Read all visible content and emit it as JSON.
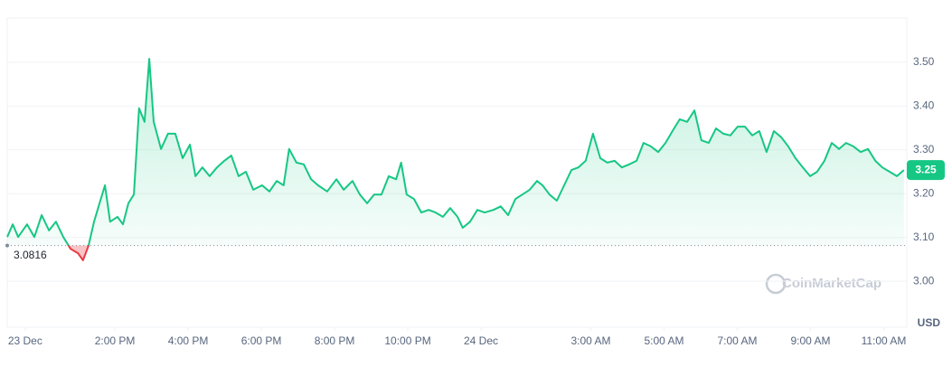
{
  "chart_data": {
    "type": "line",
    "x": [
      11.06,
      11.21,
      11.36,
      11.6,
      11.8,
      12.0,
      12.2,
      12.39,
      12.59,
      12.79,
      12.99,
      13.13,
      13.28,
      13.43,
      13.58,
      13.73,
      13.87,
      14.07,
      14.22,
      14.37,
      14.52,
      14.66,
      14.81,
      14.94,
      15.06,
      15.26,
      15.45,
      15.65,
      15.85,
      16.05,
      16.2,
      16.39,
      16.59,
      16.79,
      16.99,
      17.18,
      17.38,
      17.58,
      17.78,
      18.02,
      18.22,
      18.42,
      18.61,
      18.76,
      18.96,
      19.16,
      19.36,
      19.55,
      19.8,
      20.05,
      20.25,
      20.49,
      20.69,
      20.89,
      21.08,
      21.28,
      21.48,
      21.68,
      21.82,
      21.97,
      22.17,
      22.37,
      22.57,
      22.76,
      22.96,
      23.16,
      23.36,
      23.5,
      23.7,
      23.9,
      24.1,
      24.34,
      24.54,
      24.74,
      24.94,
      25.13,
      25.33,
      25.53,
      25.68,
      25.87,
      26.07,
      26.27,
      26.47,
      26.66,
      26.86,
      27.06,
      27.26,
      27.45,
      27.65,
      27.85,
      28.05,
      28.25,
      28.44,
      28.64,
      28.84,
      29.04,
      29.23,
      29.43,
      29.63,
      29.83,
      30.02,
      30.22,
      30.42,
      30.62,
      30.81,
      31.01,
      31.21,
      31.41,
      31.6,
      31.8,
      32.0,
      32.2,
      32.39,
      32.59,
      32.79,
      32.99,
      33.18,
      33.38,
      33.58,
      33.78,
      33.97,
      34.17,
      34.37,
      34.57,
      34.77,
      34.96,
      35.16,
      35.36,
      35.55
    ],
    "series": [
      {
        "name": "Price",
        "color": "#16c784",
        "below_color": "#ea3943",
        "values": [
          3.101,
          3.13,
          3.101,
          3.13,
          3.101,
          3.151,
          3.116,
          3.136,
          3.101,
          3.074,
          3.064,
          3.048,
          3.081,
          3.136,
          3.178,
          3.219,
          3.136,
          3.147,
          3.13,
          3.178,
          3.198,
          3.395,
          3.364,
          3.508,
          3.364,
          3.302,
          3.337,
          3.337,
          3.281,
          3.312,
          3.24,
          3.26,
          3.24,
          3.26,
          3.275,
          3.287,
          3.24,
          3.25,
          3.209,
          3.219,
          3.205,
          3.229,
          3.219,
          3.302,
          3.271,
          3.267,
          3.233,
          3.219,
          3.205,
          3.233,
          3.209,
          3.229,
          3.198,
          3.178,
          3.198,
          3.198,
          3.24,
          3.233,
          3.271,
          3.198,
          3.188,
          3.157,
          3.163,
          3.157,
          3.147,
          3.167,
          3.147,
          3.122,
          3.136,
          3.163,
          3.157,
          3.163,
          3.171,
          3.151,
          3.188,
          3.198,
          3.209,
          3.229,
          3.219,
          3.198,
          3.184,
          3.219,
          3.254,
          3.26,
          3.275,
          3.337,
          3.281,
          3.271,
          3.275,
          3.26,
          3.267,
          3.275,
          3.316,
          3.308,
          3.295,
          3.316,
          3.343,
          3.37,
          3.364,
          3.39,
          3.322,
          3.316,
          3.349,
          3.337,
          3.333,
          3.353,
          3.353,
          3.333,
          3.343,
          3.295,
          3.343,
          3.329,
          3.308,
          3.281,
          3.26,
          3.24,
          3.25,
          3.275,
          3.316,
          3.302,
          3.316,
          3.308,
          3.295,
          3.302,
          3.275,
          3.26,
          3.25,
          3.24,
          3.254
        ]
      }
    ],
    "baseline": 3.0816,
    "current_price_label": "3.25",
    "y_unit": "USD",
    "watermark": "CoinMarketCap",
    "xlim": [
      11.06,
      35.63
    ],
    "xticks": [
      {
        "value": 11.55,
        "label": "23 Dec"
      },
      {
        "value": 14,
        "label": "2:00 PM"
      },
      {
        "value": 16,
        "label": "4:00 PM"
      },
      {
        "value": 18,
        "label": "6:00 PM"
      },
      {
        "value": 20,
        "label": "8:00 PM"
      },
      {
        "value": 22,
        "label": "10:00 PM"
      },
      {
        "value": 24,
        "label": "24 Dec"
      },
      {
        "value": 27,
        "label": "3:00 AM"
      },
      {
        "value": 29,
        "label": "5:00 AM"
      },
      {
        "value": 31,
        "label": "7:00 AM"
      },
      {
        "value": 33,
        "label": "9:00 AM"
      },
      {
        "value": 35,
        "label": "11:00 AM"
      }
    ],
    "ylim": [
      2.895,
      3.601
    ],
    "yticks": [
      {
        "value": 3.0,
        "label": "3.00"
      },
      {
        "value": 3.1,
        "label": "3.10"
      },
      {
        "value": 3.2,
        "label": "3.20"
      },
      {
        "value": 3.3,
        "label": "3.30"
      },
      {
        "value": 3.4,
        "label": "3.40"
      },
      {
        "value": 3.5,
        "label": "3.50"
      }
    ],
    "grid": true
  }
}
